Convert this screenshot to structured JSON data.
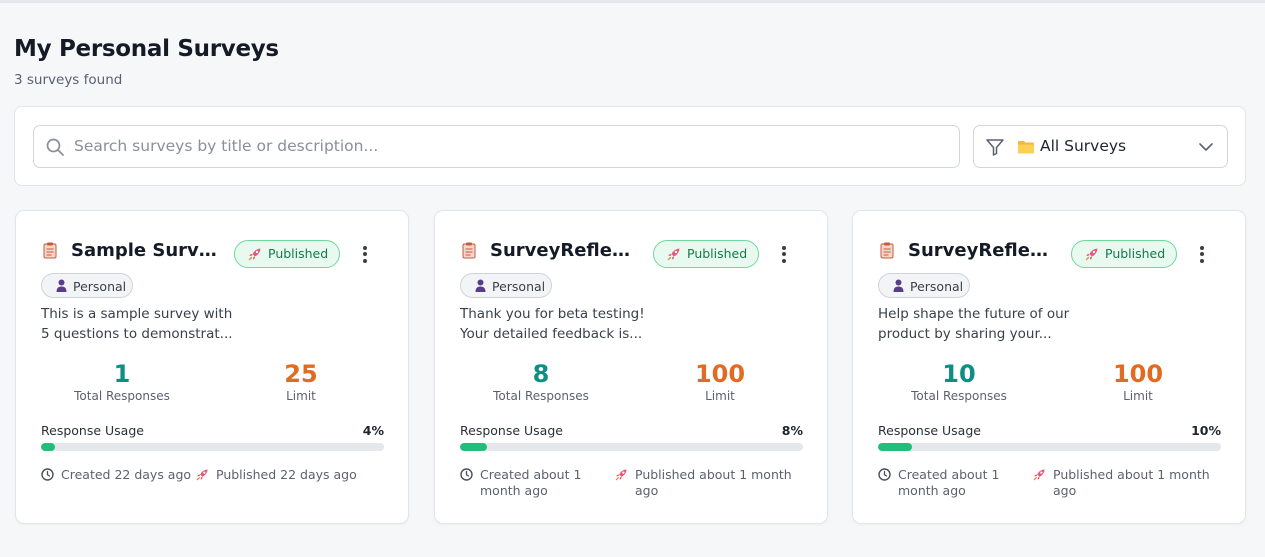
{
  "page": {
    "title": "My Personal Surveys",
    "subtitle": "3 surveys found"
  },
  "filters": {
    "search_placeholder": "Search surveys by title or description...",
    "search_value": "",
    "category_selected": "All Surveys",
    "icons": [
      "search-icon",
      "filter-icon",
      "folder-icon",
      "chevron-down-icon"
    ]
  },
  "colors": {
    "total_responses": "#0e8f84",
    "limit": "#e26b22",
    "progress": "#1fbf7a",
    "published_badge_border": "#6fd89b",
    "published_badge_text": "#16794a"
  },
  "labels": {
    "total_responses": "Total Responses",
    "limit": "Limit",
    "response_usage": "Response Usage"
  },
  "surveys": [
    {
      "title": "Sample Survey",
      "status": "Published",
      "type": "Personal",
      "desc_line1": "This is a sample survey with",
      "desc_line2": "5 questions to demonstrat...",
      "total_responses": "1",
      "limit": "25",
      "usage_pct": "4%",
      "usage_fraction": 0.04,
      "created": "Created 22 days ago",
      "published": "Published 22 days ago"
    },
    {
      "title": "SurveyReflex -...",
      "status": "Published",
      "type": "Personal",
      "desc_line1": "Thank you for beta testing!",
      "desc_line2": "Your detailed feedback is...",
      "total_responses": "8",
      "limit": "100",
      "usage_pct": "8%",
      "usage_fraction": 0.08,
      "created": "Created about 1 month ago",
      "published": "Published about 1 month ago"
    },
    {
      "title": "SurveyReflex -...",
      "status": "Published",
      "type": "Personal",
      "desc_line1": "Help shape the future of our",
      "desc_line2": "product by sharing your...",
      "total_responses": "10",
      "limit": "100",
      "usage_pct": "10%",
      "usage_fraction": 0.1,
      "created": "Created about 1 month ago",
      "published": "Published about 1 month ago"
    }
  ]
}
